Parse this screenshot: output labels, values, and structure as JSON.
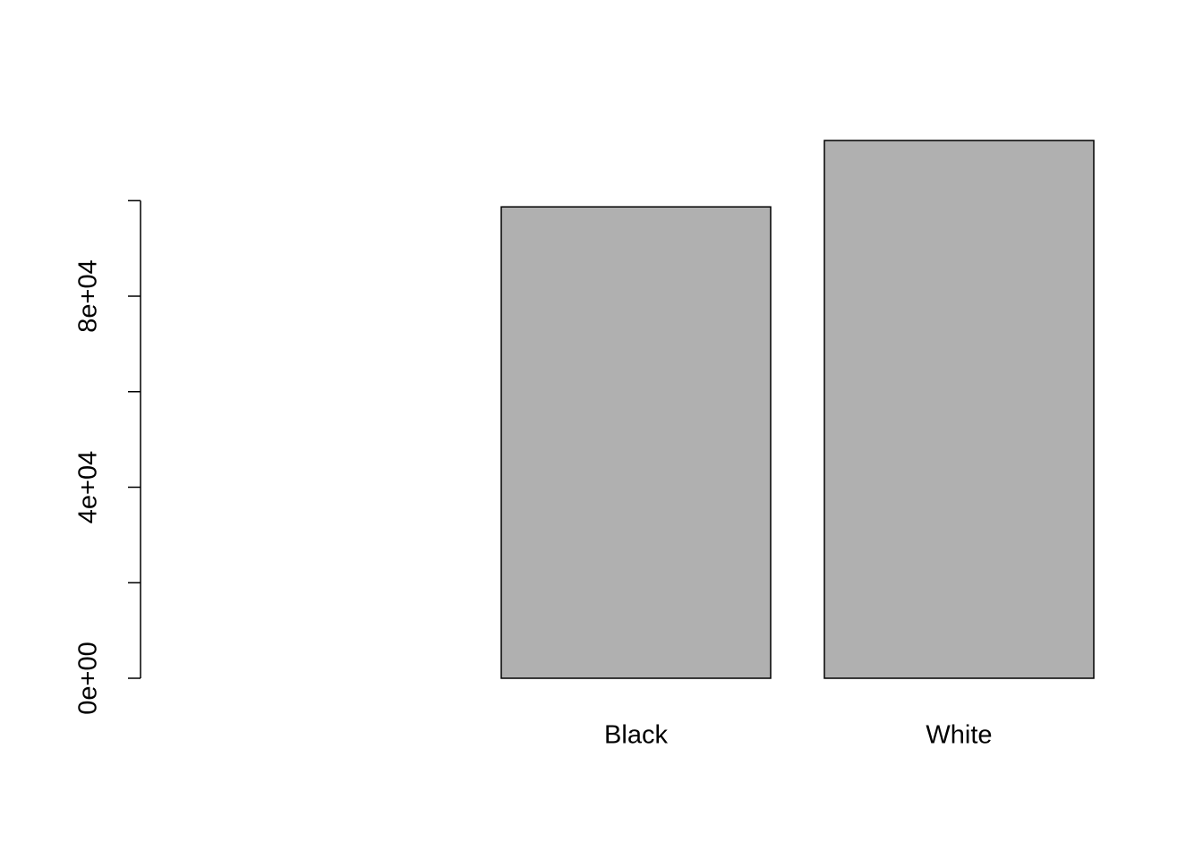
{
  "chart_data": {
    "type": "bar",
    "categories": [
      null,
      "Black",
      "White"
    ],
    "values": [
      0,
      98700,
      112600
    ],
    "color": "#b0b0b0",
    "ylim": [
      0,
      112600
    ],
    "yticks": [
      {
        "value": 0,
        "label": "0e+00"
      },
      {
        "value": 40000,
        "label": "4e+04"
      },
      {
        "value": 80000,
        "label": "8e+04"
      }
    ],
    "minor_yticks": [
      20000,
      60000,
      100000
    ],
    "grid": false
  }
}
